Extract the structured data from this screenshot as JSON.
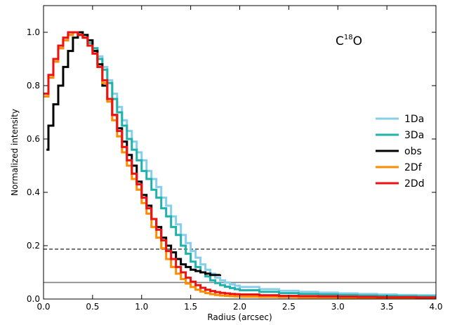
{
  "chart_data": {
    "type": "line",
    "xlabel": "Radius (arcsec)",
    "ylabel": "Normalized intensity",
    "xlim": [
      0.0,
      4.0
    ],
    "ylim": [
      0.0,
      1.1
    ],
    "x_ticks": [
      0.0,
      0.5,
      1.0,
      1.5,
      2.0,
      2.5,
      3.0,
      3.5,
      4.0
    ],
    "x_tick_labels": [
      "0.0",
      "0.5",
      "1.0",
      "1.5",
      "2.0",
      "2.5",
      "3.0",
      "3.5",
      "4.0"
    ],
    "y_ticks": [
      0.0,
      0.2,
      0.4,
      0.6,
      0.8,
      1.0
    ],
    "y_tick_labels": [
      "0.0",
      "0.2",
      "0.4",
      "0.6",
      "0.8",
      "1.0"
    ],
    "grid": false,
    "legend_position": "center-right",
    "annotation": {
      "base": "C",
      "sup": "18",
      "tail": "O"
    },
    "hlines": [
      {
        "y": 0.187,
        "style": "dashed",
        "color": "#555555"
      },
      {
        "y": 0.062,
        "style": "solid",
        "color": "#808080"
      }
    ],
    "series": [
      {
        "name": "1Da",
        "color": "#87CEEB",
        "step": true,
        "x": [
          0.0,
          0.05,
          0.1,
          0.15,
          0.2,
          0.25,
          0.3,
          0.35,
          0.4,
          0.45,
          0.5,
          0.55,
          0.6,
          0.65,
          0.7,
          0.75,
          0.8,
          0.85,
          0.9,
          0.95,
          1.0,
          1.05,
          1.1,
          1.15,
          1.2,
          1.25,
          1.3,
          1.35,
          1.4,
          1.45,
          1.5,
          1.55,
          1.6,
          1.65,
          1.7,
          1.75,
          1.8,
          1.85,
          1.9,
          1.95,
          2.0,
          2.2,
          2.4,
          2.6,
          2.8,
          3.0,
          3.2,
          3.4,
          3.6,
          3.8,
          4.0
        ],
        "y": [
          0.76,
          0.83,
          0.89,
          0.94,
          0.97,
          0.99,
          1.0,
          0.99,
          0.98,
          0.96,
          0.94,
          0.91,
          0.87,
          0.82,
          0.77,
          0.72,
          0.67,
          0.63,
          0.59,
          0.55,
          0.52,
          0.48,
          0.45,
          0.42,
          0.38,
          0.35,
          0.31,
          0.28,
          0.24,
          0.21,
          0.18,
          0.155,
          0.13,
          0.11,
          0.095,
          0.08,
          0.07,
          0.062,
          0.055,
          0.05,
          0.045,
          0.037,
          0.031,
          0.027,
          0.024,
          0.021,
          0.019,
          0.017,
          0.015,
          0.014,
          0.013
        ]
      },
      {
        "name": "3Da",
        "color": "#20B2AA",
        "step": true,
        "x": [
          0.0,
          0.05,
          0.1,
          0.15,
          0.2,
          0.25,
          0.3,
          0.35,
          0.4,
          0.45,
          0.5,
          0.55,
          0.6,
          0.65,
          0.7,
          0.75,
          0.8,
          0.85,
          0.9,
          0.95,
          1.0,
          1.05,
          1.1,
          1.15,
          1.2,
          1.25,
          1.3,
          1.35,
          1.4,
          1.45,
          1.5,
          1.55,
          1.6,
          1.65,
          1.7,
          1.75,
          1.8,
          1.85,
          1.9,
          1.95,
          2.0,
          2.2,
          2.4,
          2.6,
          2.8,
          3.0,
          3.2,
          3.4,
          3.6,
          3.8,
          4.0
        ],
        "y": [
          0.76,
          0.83,
          0.89,
          0.94,
          0.97,
          0.99,
          1.0,
          0.99,
          0.98,
          0.96,
          0.94,
          0.9,
          0.86,
          0.81,
          0.75,
          0.7,
          0.65,
          0.6,
          0.56,
          0.52,
          0.48,
          0.45,
          0.41,
          0.38,
          0.34,
          0.31,
          0.27,
          0.24,
          0.2,
          0.17,
          0.14,
          0.12,
          0.1,
          0.085,
          0.07,
          0.06,
          0.052,
          0.046,
          0.041,
          0.037,
          0.033,
          0.027,
          0.022,
          0.019,
          0.017,
          0.015,
          0.013,
          0.012,
          0.011,
          0.01,
          0.009
        ]
      },
      {
        "name": "obs",
        "color": "#000000",
        "step": true,
        "x": [
          0.03,
          0.05,
          0.1,
          0.15,
          0.2,
          0.25,
          0.3,
          0.35,
          0.4,
          0.45,
          0.5,
          0.55,
          0.6,
          0.65,
          0.7,
          0.75,
          0.8,
          0.85,
          0.9,
          0.95,
          1.0,
          1.05,
          1.1,
          1.15,
          1.2,
          1.25,
          1.3,
          1.35,
          1.4,
          1.45,
          1.5,
          1.55,
          1.6,
          1.65,
          1.7,
          1.75,
          1.8
        ],
        "y": [
          0.56,
          0.65,
          0.73,
          0.8,
          0.87,
          0.93,
          0.98,
          1.0,
          0.99,
          0.97,
          0.93,
          0.88,
          0.8,
          0.75,
          0.69,
          0.64,
          0.59,
          0.54,
          0.5,
          0.44,
          0.39,
          0.35,
          0.3,
          0.27,
          0.23,
          0.2,
          0.175,
          0.15,
          0.13,
          0.12,
          0.11,
          0.105,
          0.1,
          0.095,
          0.09,
          0.09,
          0.092
        ]
      },
      {
        "name": "2Df",
        "color": "#FF8C00",
        "step": true,
        "x": [
          0.0,
          0.05,
          0.1,
          0.15,
          0.2,
          0.25,
          0.3,
          0.35,
          0.4,
          0.45,
          0.5,
          0.55,
          0.6,
          0.65,
          0.7,
          0.75,
          0.8,
          0.85,
          0.9,
          0.95,
          1.0,
          1.05,
          1.1,
          1.15,
          1.2,
          1.25,
          1.3,
          1.35,
          1.4,
          1.45,
          1.5,
          1.55,
          1.6,
          1.65,
          1.7,
          1.75,
          1.8,
          1.85,
          1.9,
          1.95,
          2.0,
          2.2,
          2.4,
          2.6,
          2.8,
          3.0,
          3.2,
          3.4,
          3.6,
          3.8,
          4.0
        ],
        "y": [
          0.76,
          0.83,
          0.89,
          0.94,
          0.97,
          0.99,
          1.0,
          0.99,
          0.98,
          0.95,
          0.92,
          0.87,
          0.81,
          0.74,
          0.67,
          0.61,
          0.55,
          0.5,
          0.45,
          0.41,
          0.36,
          0.32,
          0.27,
          0.23,
          0.19,
          0.15,
          0.12,
          0.095,
          0.075,
          0.058,
          0.045,
          0.035,
          0.028,
          0.022,
          0.018,
          0.015,
          0.013,
          0.012,
          0.011,
          0.01,
          0.009,
          0.008,
          0.007,
          0.006,
          0.006,
          0.005,
          0.005,
          0.005,
          0.004,
          0.004,
          0.004
        ]
      },
      {
        "name": "2Dd",
        "color": "#EE1111",
        "step": true,
        "x": [
          0.0,
          0.05,
          0.1,
          0.15,
          0.2,
          0.25,
          0.3,
          0.35,
          0.4,
          0.45,
          0.5,
          0.55,
          0.6,
          0.65,
          0.7,
          0.75,
          0.8,
          0.85,
          0.9,
          0.95,
          1.0,
          1.05,
          1.1,
          1.15,
          1.2,
          1.25,
          1.3,
          1.35,
          1.4,
          1.45,
          1.5,
          1.55,
          1.6,
          1.65,
          1.7,
          1.75,
          1.8,
          1.85,
          1.9,
          1.95,
          2.0,
          2.2,
          2.4,
          2.6,
          2.8,
          3.0,
          3.2,
          3.4,
          3.6,
          3.8,
          4.0
        ],
        "y": [
          0.77,
          0.84,
          0.9,
          0.95,
          0.98,
          1.0,
          1.0,
          0.99,
          0.98,
          0.95,
          0.92,
          0.87,
          0.82,
          0.75,
          0.69,
          0.63,
          0.57,
          0.52,
          0.47,
          0.43,
          0.38,
          0.34,
          0.3,
          0.26,
          0.22,
          0.18,
          0.15,
          0.12,
          0.1,
          0.08,
          0.065,
          0.052,
          0.042,
          0.035,
          0.03,
          0.026,
          0.023,
          0.021,
          0.019,
          0.018,
          0.017,
          0.014,
          0.012,
          0.011,
          0.01,
          0.009,
          0.008,
          0.007,
          0.007,
          0.006,
          0.006
        ]
      }
    ]
  }
}
